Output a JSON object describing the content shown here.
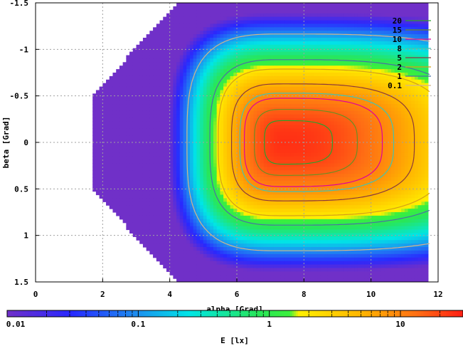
{
  "chart_data": {
    "type": "heatmap",
    "title": "",
    "xlabel": "alpha [Grad]",
    "ylabel": "beta [Grad]",
    "colorbar_label": "E [lx]",
    "xlim": [
      0,
      12
    ],
    "ylim": [
      -1.5,
      1.5
    ],
    "y_inverted": true,
    "x_ticks": [
      0,
      2,
      4,
      6,
      8,
      10,
      12
    ],
    "x_tick_labels": [
      "0",
      "2",
      "4",
      "6",
      "8",
      "10",
      "12"
    ],
    "y_ticks": [
      -1.5,
      -1,
      -0.5,
      0,
      0.5,
      1,
      1.5
    ],
    "y_tick_labels": [
      "-1.5",
      "-1",
      "-0.5",
      "0",
      "0.5",
      "1",
      "1.5"
    ],
    "grid": true,
    "colorbar": {
      "scale": "log",
      "min": 0.01,
      "max": 30,
      "tick_values": [
        0.01,
        0.1,
        1,
        10
      ],
      "tick_labels": [
        "0.01",
        "0.1",
        "1",
        "10"
      ]
    },
    "contour_legend": {
      "placement": "top-right",
      "entries": [
        {
          "label": "20",
          "color": "#2ca02c"
        },
        {
          "label": "15",
          "color": "#6b8e23"
        },
        {
          "label": "10",
          "color": "#e0009a"
        },
        {
          "label": "8",
          "color": "#40c4b0"
        },
        {
          "label": "5",
          "color": "#8b3a3a"
        },
        {
          "label": "2",
          "color": "#d4a017"
        },
        {
          "label": "1",
          "color": "#4a6fa5"
        },
        {
          "label": "0.1",
          "color": "#d2b48c"
        }
      ]
    },
    "field": {
      "peak_alpha": 7.4,
      "peak_beta": 0.0,
      "peak_value": 25,
      "alpha_coverage_start": 1.7,
      "alpha_coverage_end": 11.7
    }
  }
}
